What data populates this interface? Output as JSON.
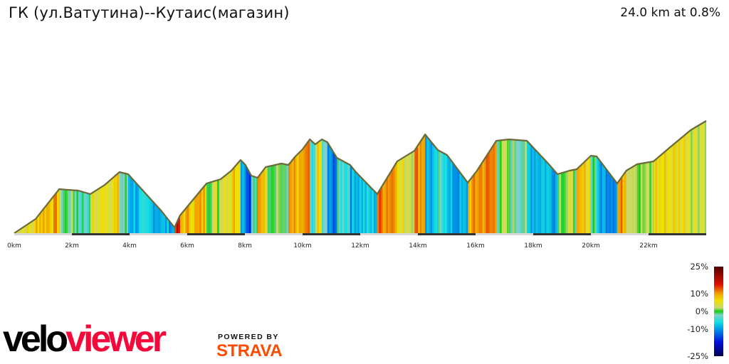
{
  "header": {
    "title": "ГК (ул.Ватутина)--Кутаис(магазин)",
    "summary": "24.0 km at 0.8%"
  },
  "branding": {
    "logo_part1": "velo",
    "logo_part2": "viewer",
    "powered_by": "POWERED BY",
    "strava": "STRAVA",
    "colors": {
      "velo": "#000000",
      "viewer": "#f5083a",
      "strava": "#fc4c02"
    }
  },
  "chart_data": {
    "type": "area",
    "title": "",
    "xlabel": "",
    "ylabel": "",
    "xlim": [
      0,
      24
    ],
    "x_ticks": [
      "0km",
      "2km",
      "4km",
      "6km",
      "8km",
      "10km",
      "12km",
      "14km",
      "16km",
      "18km",
      "20km",
      "22km"
    ],
    "grid": false,
    "note_colored_by": "gradient",
    "profile": [
      [
        0,
        2
      ],
      [
        0.74,
        22
      ],
      [
        1.56,
        64
      ],
      [
        1.85,
        63
      ],
      [
        2.22,
        62
      ],
      [
        2.64,
        57
      ],
      [
        3.14,
        70
      ],
      [
        3.65,
        88
      ],
      [
        3.95,
        85
      ],
      [
        4.44,
        63
      ],
      [
        5.11,
        33
      ],
      [
        5.56,
        10
      ],
      [
        5.75,
        27
      ],
      [
        6.67,
        72
      ],
      [
        7.16,
        78
      ],
      [
        7.53,
        90
      ],
      [
        7.85,
        105
      ],
      [
        8.02,
        98
      ],
      [
        8.22,
        83
      ],
      [
        8.44,
        80
      ],
      [
        8.72,
        95
      ],
      [
        9.26,
        100
      ],
      [
        9.51,
        98
      ],
      [
        9.75,
        110
      ],
      [
        10.0,
        120
      ],
      [
        10.25,
        134
      ],
      [
        10.44,
        127
      ],
      [
        10.67,
        134
      ],
      [
        10.86,
        130
      ],
      [
        11.19,
        108
      ],
      [
        11.65,
        98
      ],
      [
        11.85,
        88
      ],
      [
        12.59,
        57
      ],
      [
        13.28,
        103
      ],
      [
        13.88,
        118
      ],
      [
        14.25,
        141
      ],
      [
        14.69,
        119
      ],
      [
        15.01,
        112
      ],
      [
        15.73,
        73
      ],
      [
        16.05,
        90
      ],
      [
        16.72,
        132
      ],
      [
        17.16,
        134
      ],
      [
        17.78,
        132
      ],
      [
        18.52,
        100
      ],
      [
        18.84,
        85
      ],
      [
        19.26,
        90
      ],
      [
        19.51,
        92
      ],
      [
        20.0,
        111
      ],
      [
        20.2,
        110
      ],
      [
        20.91,
        72
      ],
      [
        21.23,
        90
      ],
      [
        21.6,
        99
      ],
      [
        22.17,
        103
      ],
      [
        22.72,
        122
      ],
      [
        23.46,
        147
      ],
      [
        24.0,
        160
      ]
    ],
    "legend": {
      "labels": [
        "25%",
        "10%",
        "0%",
        "-10%",
        "-25%"
      ],
      "values": [
        25,
        10,
        0,
        -10,
        -25
      ],
      "color_stops": [
        [
          -25,
          "#000050"
        ],
        [
          -17,
          "#0010e0"
        ],
        [
          -10,
          "#0098e8"
        ],
        [
          -6,
          "#10e0e0"
        ],
        [
          -2,
          "#80d0c8"
        ],
        [
          0,
          "#10d010"
        ],
        [
          2,
          "#c8d870"
        ],
        [
          6,
          "#f0e000"
        ],
        [
          10,
          "#f0a000"
        ],
        [
          15,
          "#e01000"
        ],
        [
          25,
          "#500000"
        ]
      ]
    }
  }
}
